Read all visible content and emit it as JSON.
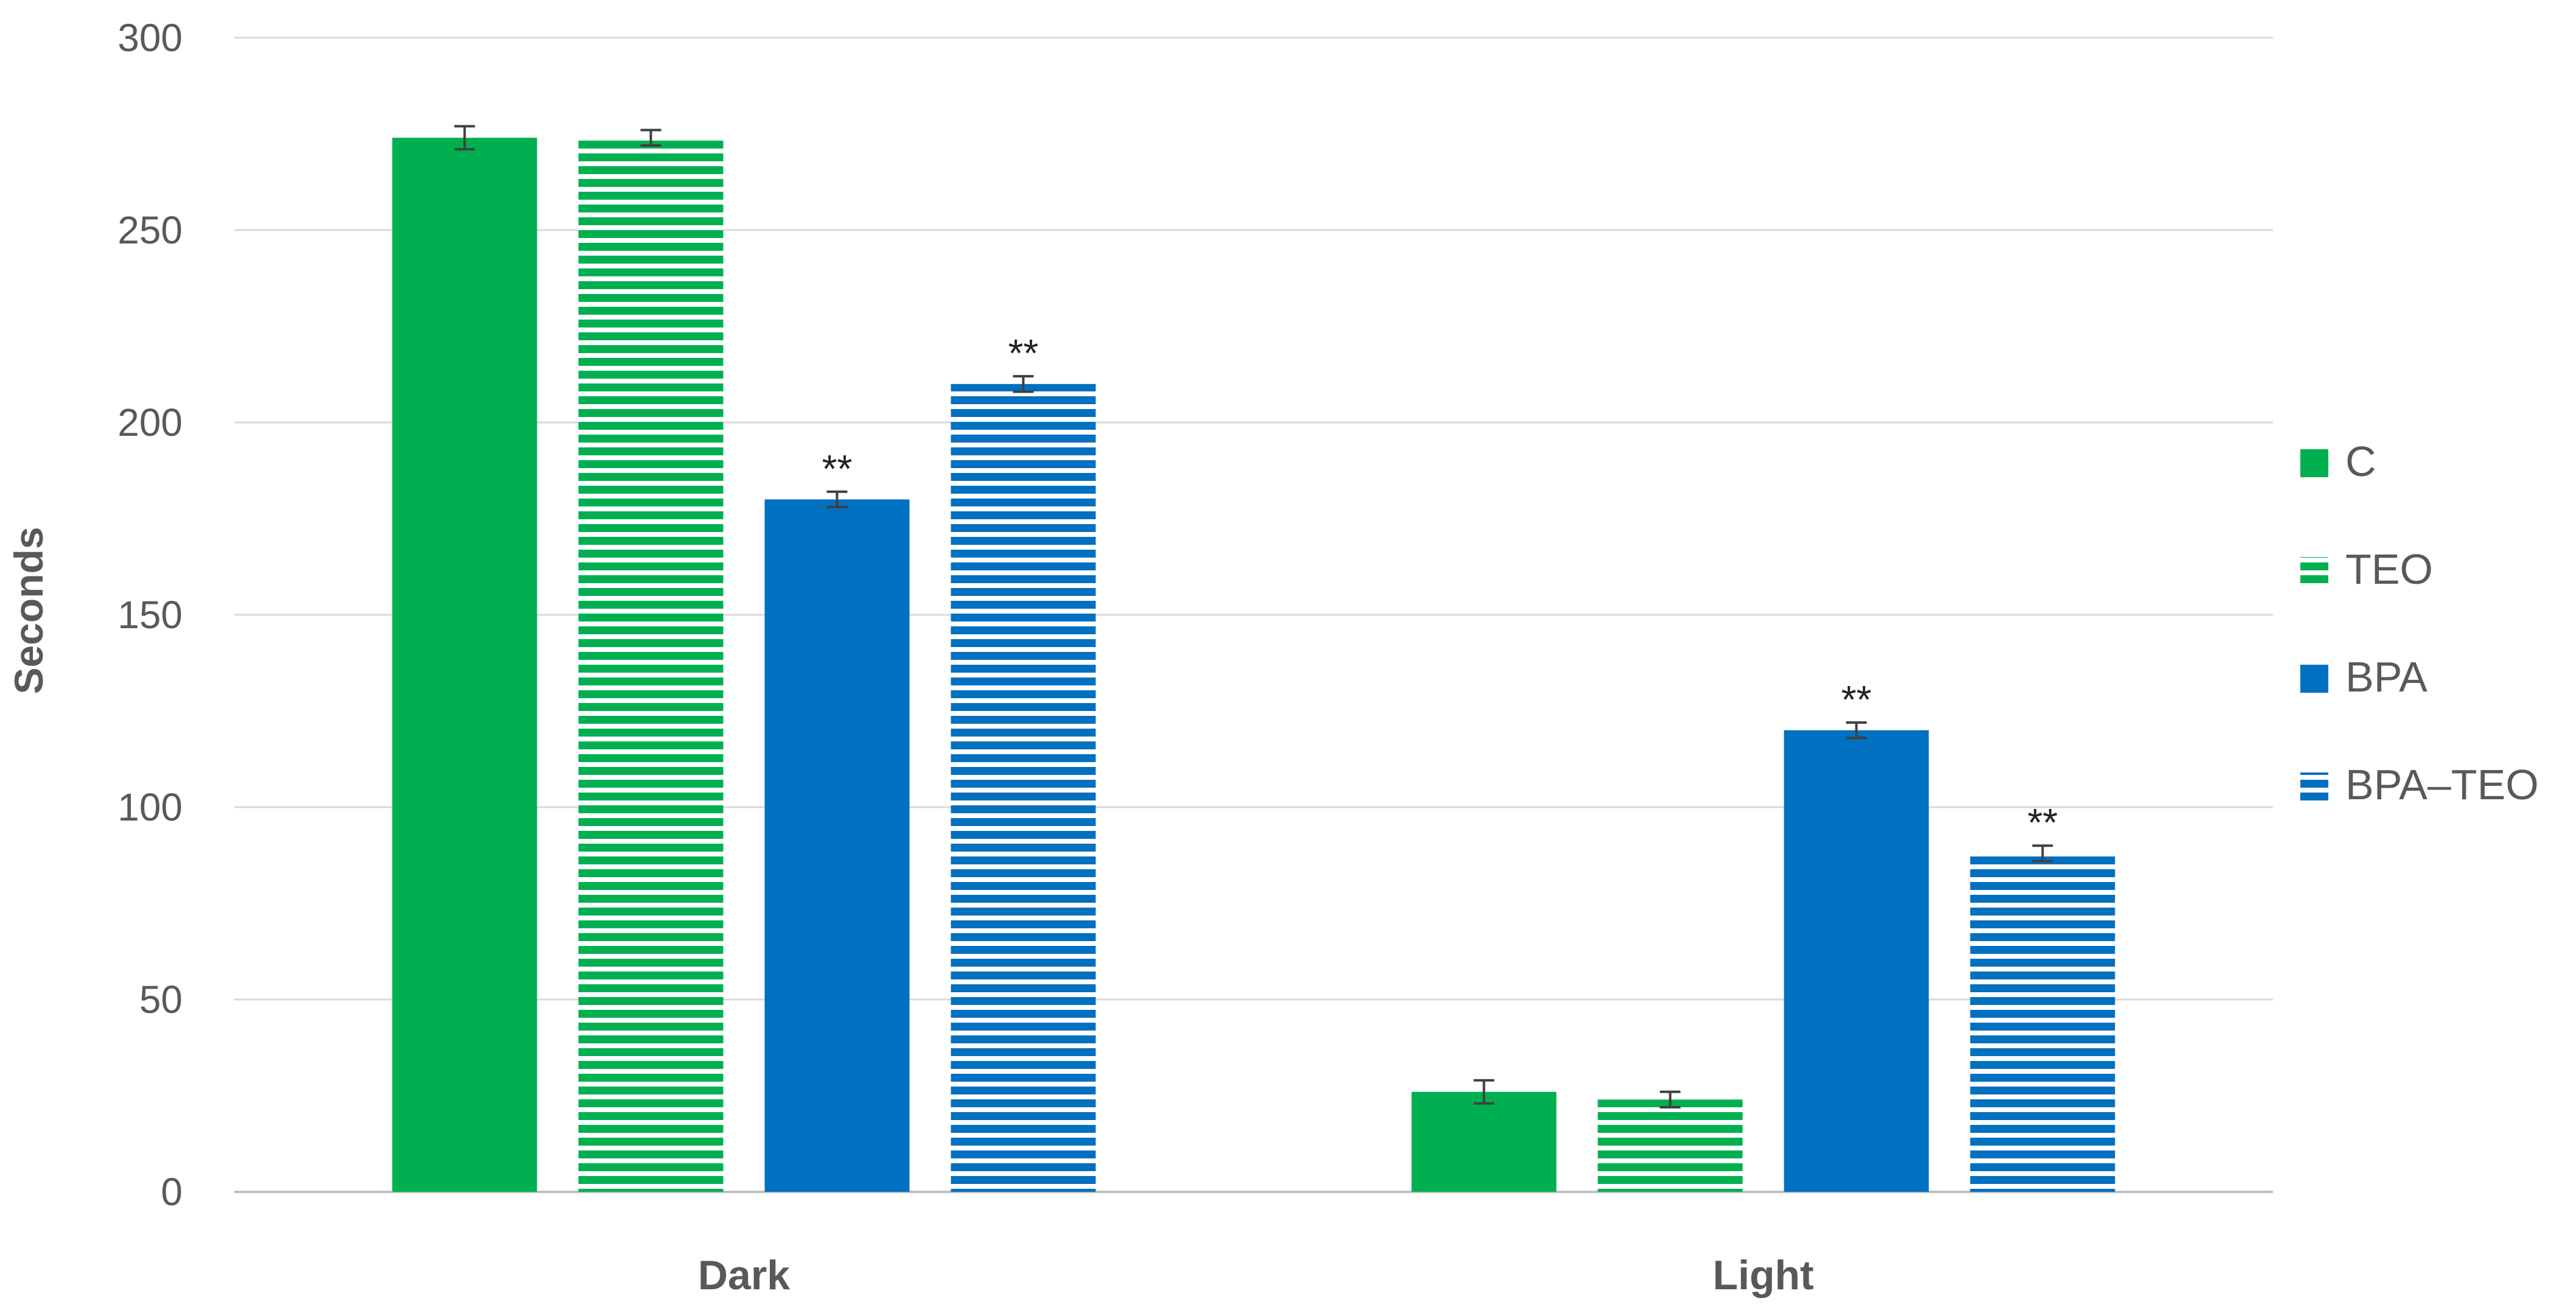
{
  "chart_data": {
    "type": "bar",
    "title": "",
    "xlabel": "",
    "ylabel": "Seconds",
    "ylim": [
      0,
      300
    ],
    "yticks": [
      0,
      50,
      100,
      150,
      200,
      250,
      300
    ],
    "categories": [
      "Dark",
      "Light"
    ],
    "grid": true,
    "legend_position": "right",
    "series": [
      {
        "name": "C",
        "values": [
          274,
          26
        ],
        "errors": [
          3,
          3
        ],
        "color": "#00b050",
        "pattern": "solid",
        "significance": [
          "",
          ""
        ]
      },
      {
        "name": "TEO",
        "values": [
          274,
          24
        ],
        "errors": [
          2,
          2
        ],
        "color": "#00b050",
        "pattern": "horizontal-stripes",
        "significance": [
          "",
          ""
        ]
      },
      {
        "name": "BPA",
        "values": [
          180,
          120
        ],
        "errors": [
          2,
          2
        ],
        "color": "#0070c0",
        "pattern": "solid",
        "significance": [
          "**",
          "**"
        ]
      },
      {
        "name": "BPA–TEO",
        "values": [
          210,
          88
        ],
        "errors": [
          2,
          2
        ],
        "color": "#0070c0",
        "pattern": "horizontal-stripes",
        "significance": [
          "**",
          "**"
        ]
      }
    ]
  },
  "colors": {
    "grid": "#d9d9d9",
    "axis": "#bfbfbf",
    "text": "#595959",
    "error_bar": "#404040"
  }
}
